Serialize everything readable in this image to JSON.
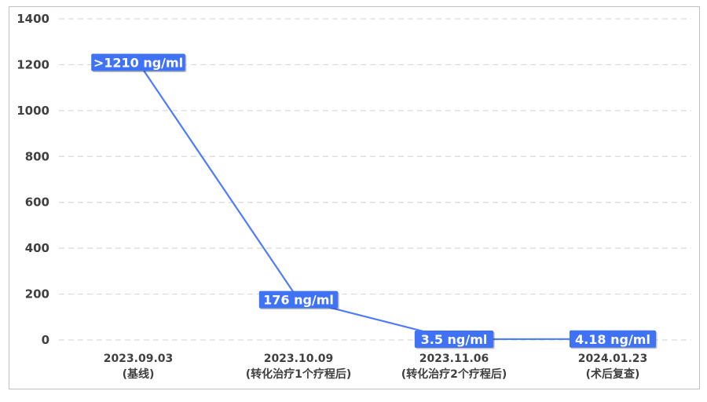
{
  "chart_data": {
    "type": "line",
    "title": "",
    "xlabel": "",
    "ylabel": "",
    "ylim": [
      0,
      1400
    ],
    "yticks": [
      0,
      200,
      400,
      600,
      800,
      1000,
      1200,
      1400
    ],
    "grid": true,
    "categories": [
      [
        "2023.09.03",
        "(基线)"
      ],
      [
        "2023.10.09",
        "(转化治疗1个疗程后)"
      ],
      [
        "2023.11.06",
        "(转化治疗2个疗程后)"
      ],
      [
        "2024.01.23",
        "(术后复查)"
      ]
    ],
    "series": [
      {
        "values": [
          1210,
          176,
          3.5,
          4.18
        ],
        "data_labels": [
          ">1210 ng/ml",
          "176 ng/ml",
          "3.5 ng/ml",
          "4.18 ng/ml"
        ]
      }
    ],
    "colors": {
      "line": "#4f7cf7",
      "label_bg": "#3f72f5",
      "grid": "#d9d9d9"
    }
  }
}
